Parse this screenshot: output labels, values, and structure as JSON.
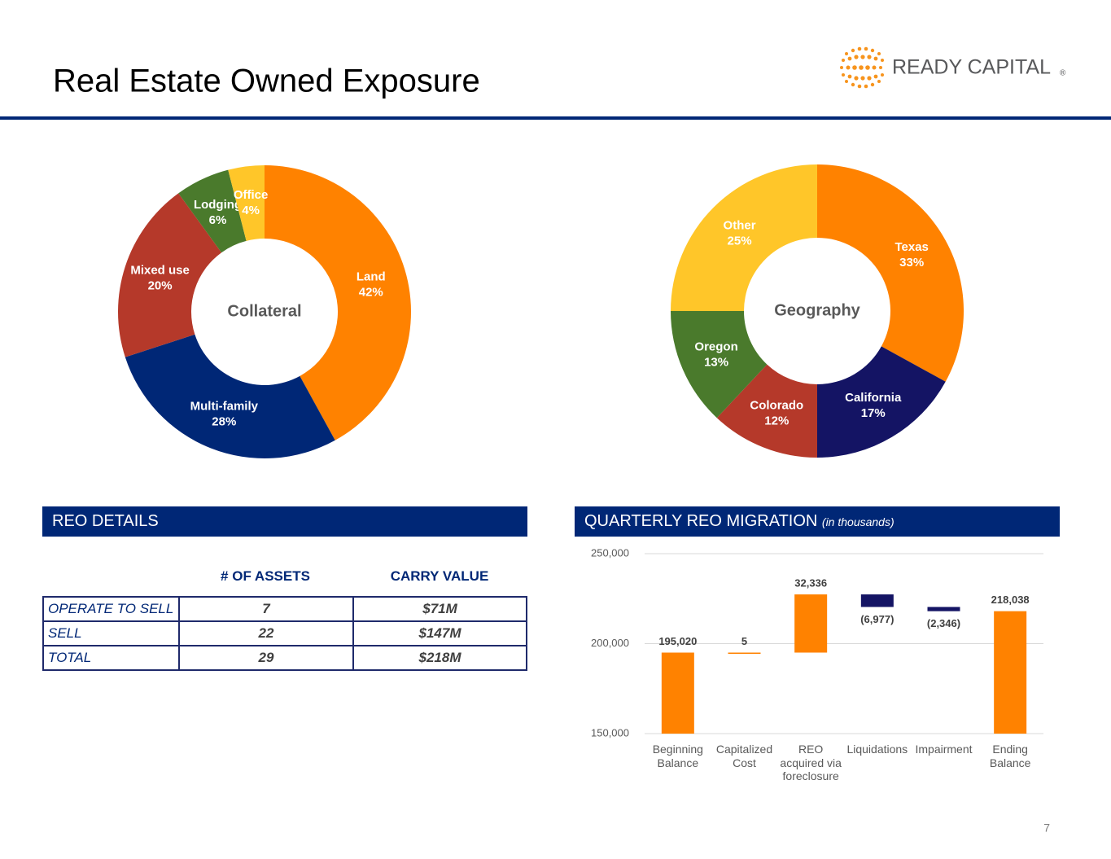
{
  "title": "Real Estate Owned Exposure",
  "logo_text": "READY CAPITAL",
  "logo_mark": "®",
  "page_number": "7",
  "reo_details": {
    "header": "REO DETAILS",
    "columns": [
      "# OF ASSETS",
      "CARRY VALUE"
    ],
    "rows": [
      [
        "OPERATE TO SELL",
        7,
        "$71M"
      ],
      [
        "SELL",
        22,
        "$147M"
      ],
      [
        "TOTAL",
        29,
        "$218M"
      ]
    ]
  },
  "chart_data": [
    {
      "type": "donut",
      "center_label": "Collateral",
      "categories": [
        "Land",
        "Multi-family",
        "Mixed use",
        "Lodging",
        "Office"
      ],
      "values": [
        42,
        28,
        20,
        6,
        4
      ],
      "value_labels": [
        "42%",
        "28%",
        "20%",
        "6%",
        "4%"
      ],
      "colors": [
        "#FF8200",
        "#002776",
        "#B5392A",
        "#4A7A2C",
        "#FFC629"
      ]
    },
    {
      "type": "donut",
      "center_label": "Geography",
      "categories": [
        "Texas",
        "California",
        "Colorado",
        "Oregon",
        "Other"
      ],
      "values": [
        33,
        17,
        12,
        13,
        25
      ],
      "value_labels": [
        "33%",
        "17%",
        "12%",
        "13%",
        "25%"
      ],
      "colors": [
        "#FF8200",
        "#141464",
        "#B5392A",
        "#4A7A2C",
        "#FFC629"
      ]
    },
    {
      "type": "waterfall",
      "title": "QUARTERLY REO MIGRATION",
      "subtitle": "(in thousands)",
      "categories": [
        "Beginning Balance",
        "Capitalized Cost",
        "REO acquired via foreclosure",
        "Liquidations",
        "Impairment",
        "Ending Balance"
      ],
      "values": [
        195020,
        5,
        32336,
        -6977,
        -2346,
        218038
      ],
      "value_labels": [
        "195,020",
        "5",
        "32,336",
        "(6,977)",
        "(2,346)",
        "218,038"
      ],
      "measure": [
        "total",
        "relative",
        "relative",
        "relative",
        "relative",
        "total"
      ],
      "colors": {
        "total": "#FF8200",
        "increase": "#FF8200",
        "decrease": "#141464"
      },
      "ylim": [
        150000,
        250000
      ],
      "yticks": [
        {
          "value": 150000,
          "label": "150,000"
        },
        {
          "value": 200000,
          "label": "200,000"
        },
        {
          "value": 250000,
          "label": "250,000"
        }
      ],
      "grid": true
    }
  ]
}
